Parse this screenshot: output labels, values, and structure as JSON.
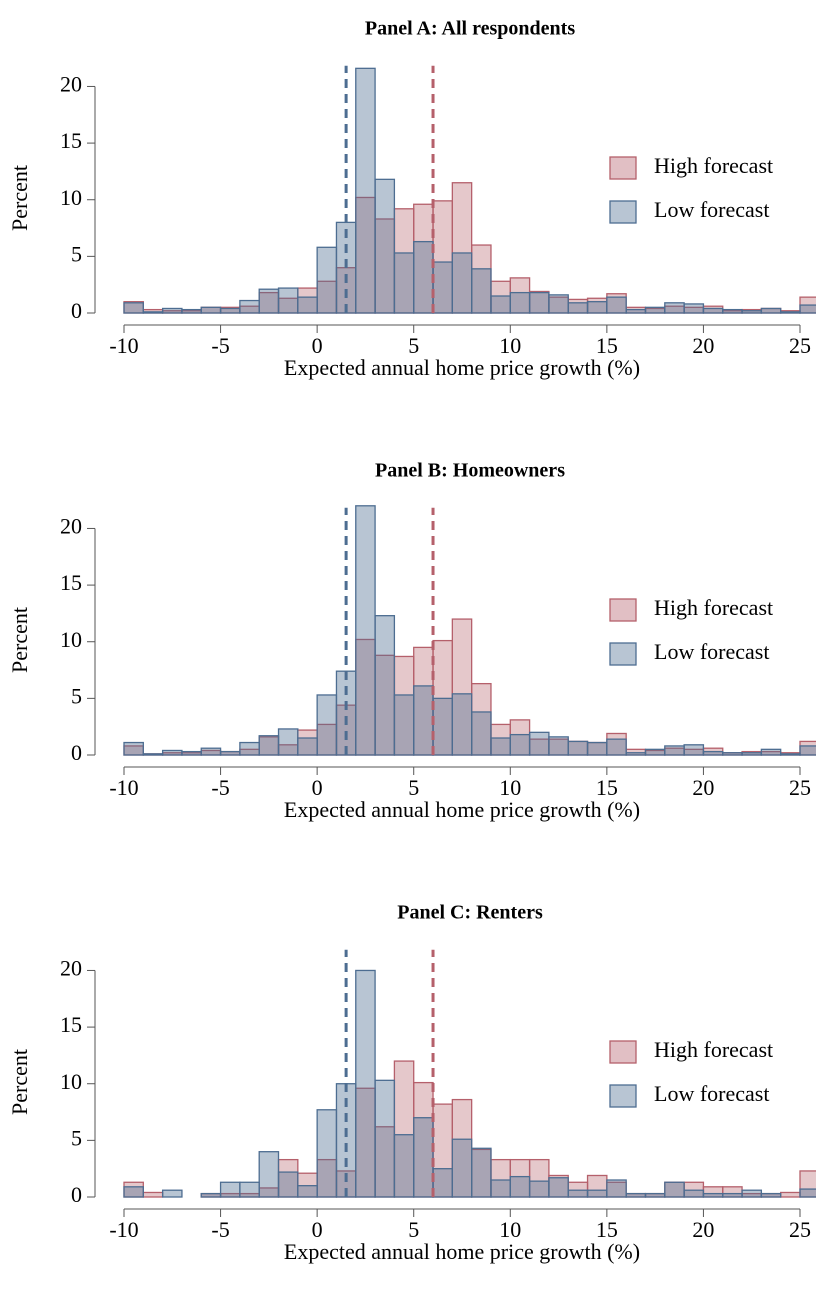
{
  "chart_data": [
    {
      "type": "histogram",
      "title": "Panel A: All respondents",
      "xlabel": "Expected annual home price growth (%)",
      "ylabel": "Percent",
      "bins": [
        -10,
        -9,
        -8,
        -7,
        -6,
        -5,
        -4,
        -3,
        -2,
        -1,
        0,
        1,
        2,
        3,
        4,
        5,
        6,
        7,
        8,
        9,
        10,
        11,
        12,
        13,
        14,
        15,
        16,
        17,
        18,
        19,
        20,
        21,
        22,
        23,
        24,
        25,
        26
      ],
      "series": [
        {
          "name": "High forecast",
          "color": "#b5606b",
          "mean": 6,
          "values": [
            1.0,
            0.3,
            0.2,
            0.2,
            0.5,
            0.5,
            0.6,
            1.8,
            1.3,
            2.2,
            2.8,
            4.0,
            10.2,
            8.3,
            9.2,
            9.6,
            9.9,
            11.5,
            6.0,
            2.8,
            3.1,
            1.9,
            1.4,
            1.2,
            1.3,
            1.7,
            0.5,
            0.4,
            0.6,
            0.5,
            0.6,
            0.2,
            0.3,
            0.4,
            0.2,
            1.4
          ]
        },
        {
          "name": "Low forecast",
          "color": "#4d6d91",
          "mean": 1.5,
          "values": [
            0.9,
            0.1,
            0.4,
            0.3,
            0.5,
            0.4,
            1.1,
            2.1,
            2.2,
            1.4,
            5.8,
            8.0,
            21.6,
            11.8,
            5.3,
            6.3,
            4.5,
            5.3,
            3.9,
            1.5,
            1.8,
            1.8,
            1.6,
            0.9,
            1.0,
            1.4,
            0.3,
            0.5,
            0.9,
            0.8,
            0.4,
            0.3,
            0.2,
            0.4,
            0.1,
            0.7
          ]
        }
      ],
      "xlim": [
        -10,
        25
      ],
      "xticks": [
        -10,
        -5,
        0,
        5,
        10,
        15,
        20,
        25
      ],
      "ylim": [
        0,
        22
      ],
      "yticks": [
        0,
        5,
        10,
        15,
        20
      ],
      "legend": "right"
    },
    {
      "type": "histogram",
      "title": "Panel B: Homeowners",
      "xlabel": "Expected annual home price growth (%)",
      "ylabel": "Percent",
      "bins": [
        -10,
        -9,
        -8,
        -7,
        -6,
        -5,
        -4,
        -3,
        -2,
        -1,
        0,
        1,
        2,
        3,
        4,
        5,
        6,
        7,
        8,
        9,
        10,
        11,
        12,
        13,
        14,
        15,
        16,
        17,
        18,
        19,
        20,
        21,
        22,
        23,
        24,
        25,
        26
      ],
      "series": [
        {
          "name": "High forecast",
          "color": "#b5606b",
          "mean": 6,
          "values": [
            0.8,
            0.1,
            0.2,
            0.2,
            0.4,
            0.3,
            0.5,
            1.6,
            0.9,
            2.2,
            2.7,
            4.4,
            10.2,
            8.8,
            8.7,
            9.5,
            10.1,
            12.0,
            6.3,
            2.7,
            3.1,
            1.4,
            1.4,
            1.2,
            1.1,
            1.9,
            0.5,
            0.4,
            0.6,
            0.5,
            0.6,
            0.2,
            0.3,
            0.3,
            0.2,
            1.2
          ]
        },
        {
          "name": "Low forecast",
          "color": "#4d6d91",
          "mean": 1.5,
          "values": [
            1.1,
            0.1,
            0.4,
            0.3,
            0.6,
            0.3,
            1.1,
            1.7,
            2.3,
            1.5,
            5.3,
            7.4,
            22.0,
            12.3,
            5.3,
            6.1,
            5.0,
            5.4,
            3.8,
            1.5,
            1.8,
            2.0,
            1.6,
            1.2,
            1.1,
            1.4,
            0.2,
            0.5,
            0.8,
            0.9,
            0.3,
            0.2,
            0.2,
            0.5,
            0.1,
            0.8
          ]
        }
      ],
      "xlim": [
        -10,
        25
      ],
      "xticks": [
        -10,
        -5,
        0,
        5,
        10,
        15,
        20,
        25
      ],
      "ylim": [
        0,
        22
      ],
      "yticks": [
        0,
        5,
        10,
        15,
        20
      ],
      "legend": "right"
    },
    {
      "type": "histogram",
      "title": "Panel C: Renters",
      "xlabel": "Expected annual home price growth (%)",
      "ylabel": "Percent",
      "bins": [
        -10,
        -9,
        -8,
        -7,
        -6,
        -5,
        -4,
        -3,
        -2,
        -1,
        0,
        1,
        2,
        3,
        4,
        5,
        6,
        7,
        8,
        9,
        10,
        11,
        12,
        13,
        14,
        15,
        16,
        17,
        18,
        19,
        20,
        21,
        22,
        23,
        24,
        25,
        26
      ],
      "series": [
        {
          "name": "High forecast",
          "color": "#b5606b",
          "mean": 6,
          "values": [
            1.3,
            0.4,
            0,
            0,
            0.3,
            0.3,
            0.3,
            0.8,
            3.3,
            2.1,
            3.3,
            2.3,
            9.6,
            6.2,
            12.0,
            10.1,
            8.2,
            8.6,
            4.2,
            3.3,
            3.3,
            3.3,
            1.9,
            1.3,
            1.9,
            1.3,
            0.3,
            0.3,
            1.3,
            1.3,
            0.9,
            0.9,
            0.3,
            0.3,
            0.4,
            2.3
          ]
        },
        {
          "name": "Low forecast",
          "color": "#4d6d91",
          "mean": 1.5,
          "values": [
            0.9,
            0,
            0.6,
            0,
            0.3,
            1.3,
            1.3,
            4.0,
            2.2,
            1.0,
            7.7,
            10.0,
            20.0,
            10.3,
            5.5,
            7.0,
            2.5,
            5.1,
            4.3,
            1.5,
            1.8,
            1.4,
            1.7,
            0.6,
            0.6,
            1.5,
            0.3,
            0.3,
            1.3,
            0.6,
            0.3,
            0.3,
            0.6,
            0.3,
            0,
            0.7
          ]
        }
      ],
      "xlim": [
        -10,
        25
      ],
      "xticks": [
        -10,
        -5,
        0,
        5,
        10,
        15,
        20,
        25
      ],
      "ylim": [
        0,
        22
      ],
      "yticks": [
        0,
        5,
        10,
        15,
        20
      ],
      "legend": "right"
    }
  ]
}
